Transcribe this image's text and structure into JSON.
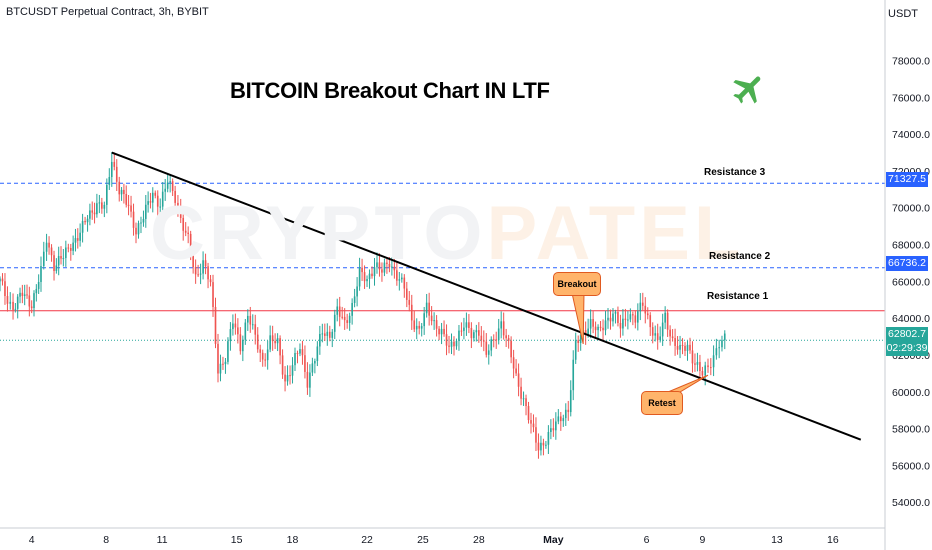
{
  "header": {
    "symbol_line": "BTCUSDT Perpetual Contract, 3h, BYBIT",
    "currency": "USDT"
  },
  "headline": "BITCOIN Breakout Chart IN LTF",
  "watermark": {
    "main": "CRYPTO",
    "tail": "PATEL"
  },
  "colors": {
    "up": "#26a69a",
    "down": "#ef5350",
    "resistance_dash": "#2962ff",
    "resistance_1": "#f23645",
    "trendline": "#000000",
    "callout_fill": "#ffb46b",
    "plane_icon": "#4caf50"
  },
  "icons": {
    "decoration": "airplane-icon"
  },
  "chart_data": {
    "type": "candlestick",
    "title": "BITCOIN Breakout Chart IN LTF",
    "y_axis": {
      "ticks": [
        "54000.0",
        "56000.0",
        "58000.0",
        "60000.0",
        "62000.0",
        "64000.0",
        "66000.0",
        "68000.0",
        "70000.0",
        "72000.0",
        "74000.0",
        "76000.0",
        "78000.0"
      ],
      "range": [
        52600,
        80200
      ],
      "side": "right"
    },
    "x_axis": {
      "ticks": [
        "4",
        "8",
        "11",
        "15",
        "18",
        "22",
        "25",
        "28",
        "May",
        "6",
        "9",
        "13",
        "16"
      ],
      "positions": [
        4,
        8,
        11,
        15,
        18,
        22,
        25,
        28,
        32,
        37,
        40,
        44,
        47
      ],
      "range": [
        2.3,
        49.8
      ],
      "unit": "day"
    },
    "close_path": [
      [
        2.3,
        66000
      ],
      [
        2.7,
        65000
      ],
      [
        3.0,
        64600
      ],
      [
        3.5,
        65300
      ],
      [
        4.0,
        64800
      ],
      [
        4.5,
        66500
      ],
      [
        4.8,
        68300
      ],
      [
        5.2,
        66900
      ],
      [
        5.7,
        67300
      ],
      [
        6.1,
        68000
      ],
      [
        6.6,
        68600
      ],
      [
        7.0,
        69500
      ],
      [
        7.5,
        70200
      ],
      [
        7.9,
        70000
      ],
      [
        8.3,
        72700
      ],
      [
        8.7,
        71000
      ],
      [
        9.2,
        70000
      ],
      [
        9.6,
        68800
      ],
      [
        10.0,
        69500
      ],
      [
        10.5,
        70800
      ],
      [
        10.9,
        70200
      ],
      [
        11.3,
        71400
      ],
      [
        11.7,
        70600
      ],
      [
        12.0,
        69400
      ],
      [
        12.4,
        68200
      ],
      [
        12.8,
        66200
      ],
      [
        13.2,
        67100
      ],
      [
        13.6,
        65800
      ],
      [
        14.0,
        61200
      ],
      [
        14.4,
        61900
      ],
      [
        14.8,
        63800
      ],
      [
        15.2,
        62500
      ],
      [
        15.6,
        64200
      ],
      [
        16.0,
        62900
      ],
      [
        16.4,
        61700
      ],
      [
        16.8,
        62800
      ],
      [
        17.2,
        62600
      ],
      [
        17.6,
        60600
      ],
      [
        18.0,
        61400
      ],
      [
        18.4,
        62400
      ],
      [
        18.8,
        60600
      ],
      [
        19.2,
        61800
      ],
      [
        19.6,
        63300
      ],
      [
        20.0,
        63100
      ],
      [
        20.4,
        64400
      ],
      [
        20.8,
        63700
      ],
      [
        21.2,
        64700
      ],
      [
        21.6,
        66400
      ],
      [
        22.0,
        66100
      ],
      [
        22.4,
        66900
      ],
      [
        22.8,
        66500
      ],
      [
        23.2,
        67100
      ],
      [
        23.6,
        66300
      ],
      [
        24.0,
        65600
      ],
      [
        24.4,
        64000
      ],
      [
        24.8,
        63300
      ],
      [
        25.2,
        64500
      ],
      [
        25.6,
        63800
      ],
      [
        26.0,
        63200
      ],
      [
        26.4,
        62300
      ],
      [
        26.8,
        63000
      ],
      [
        27.2,
        63600
      ],
      [
        27.6,
        63100
      ],
      [
        28.0,
        63400
      ],
      [
        28.4,
        62000
      ],
      [
        28.8,
        62800
      ],
      [
        29.2,
        63800
      ],
      [
        29.6,
        62400
      ],
      [
        30.0,
        60800
      ],
      [
        30.4,
        59600
      ],
      [
        30.8,
        58100
      ],
      [
        31.2,
        57000
      ],
      [
        31.6,
        57400
      ],
      [
        32.0,
        58000
      ],
      [
        32.4,
        58700
      ],
      [
        32.8,
        59000
      ],
      [
        33.2,
        62600
      ],
      [
        33.6,
        63300
      ],
      [
        34.0,
        63700
      ],
      [
        34.4,
        63200
      ],
      [
        34.8,
        63900
      ],
      [
        35.2,
        64200
      ],
      [
        35.6,
        63500
      ],
      [
        36.0,
        64300
      ],
      [
        36.4,
        63900
      ],
      [
        36.8,
        64800
      ],
      [
        37.2,
        63700
      ],
      [
        37.6,
        62600
      ],
      [
        38.0,
        64100
      ],
      [
        38.4,
        62800
      ],
      [
        38.8,
        62200
      ],
      [
        39.2,
        62500
      ],
      [
        39.6,
        61600
      ],
      [
        40.0,
        60900
      ],
      [
        40.3,
        61300
      ],
      [
        40.6,
        62000
      ],
      [
        40.9,
        62700
      ],
      [
        41.2,
        62803
      ]
    ],
    "horizontal_levels": [
      {
        "label": "Resistance 3",
        "value": 71327.5,
        "tag": "71327.5",
        "style": "dashed"
      },
      {
        "label": "Resistance 2",
        "value": 66736.2,
        "tag": "66736.2",
        "style": "dashed"
      },
      {
        "label": "Resistance 1",
        "value": 64400,
        "style": "solid"
      }
    ],
    "current_price": {
      "value": 62802.7,
      "tag": "62802.7",
      "countdown": "02:29:39"
    },
    "trendline": {
      "from": [
        8.3,
        73000
      ],
      "to": [
        48.5,
        57400
      ]
    },
    "annotations": [
      {
        "text": "Breakout",
        "point": [
          33.6,
          62600
        ]
      },
      {
        "text": "Retest",
        "point": [
          40.3,
          60900
        ]
      }
    ]
  }
}
